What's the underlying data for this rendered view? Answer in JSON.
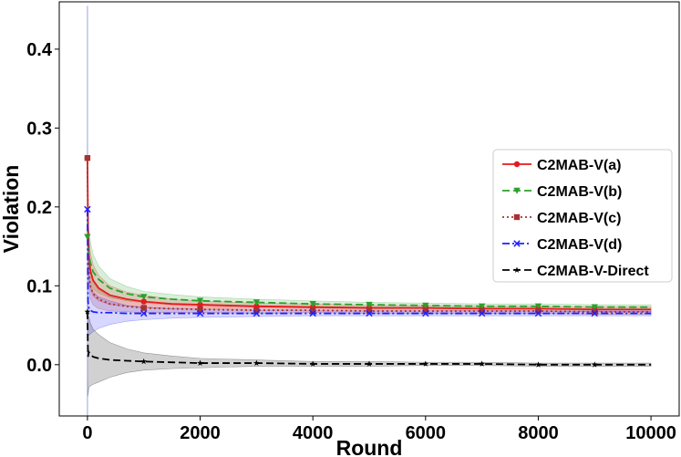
{
  "chart_data": {
    "type": "line",
    "title": "",
    "xlabel": "Round",
    "ylabel": "Violation",
    "xlim": [
      -500,
      10500
    ],
    "ylim": [
      -0.065,
      0.46
    ],
    "xticks": [
      0,
      2000,
      4000,
      6000,
      8000,
      10000
    ],
    "yticks": [
      0.0,
      0.1,
      0.2,
      0.3,
      0.4
    ],
    "xtick_labels": [
      "0",
      "2000",
      "4000",
      "6000",
      "8000",
      "10000"
    ],
    "ytick_labels": [
      "0.0",
      "0.1",
      "0.2",
      "0.3",
      "0.4"
    ],
    "grid": false,
    "legend": "center-right",
    "series": [
      {
        "name": "C2MAB-V(a)",
        "color": "#e41a1c",
        "dash": "solid",
        "marker": "circle",
        "x": [
          0,
          10,
          25,
          50,
          100,
          200,
          400,
          700,
          1000,
          1500,
          2000,
          3000,
          4000,
          5000,
          6000,
          7000,
          8000,
          9000,
          10000
        ],
        "y": [
          0.262,
          0.178,
          0.14,
          0.12,
          0.107,
          0.097,
          0.088,
          0.083,
          0.08,
          0.077,
          0.076,
          0.074,
          0.073,
          0.072,
          0.072,
          0.071,
          0.071,
          0.07,
          0.07
        ],
        "band": [
          0.017,
          0.025,
          0.025,
          0.023,
          0.02,
          0.016,
          0.012,
          0.009,
          0.008,
          0.006,
          0.005,
          0.004,
          0.004,
          0.003,
          0.003,
          0.003,
          0.003,
          0.003,
          0.003
        ],
        "marker_x": [
          0,
          1000,
          2000,
          3000,
          4000,
          5000,
          6000,
          7000,
          8000,
          9000
        ]
      },
      {
        "name": "C2MAB-V(b)",
        "color": "#2ca02c",
        "dash": "dashed",
        "marker": "triangle-down",
        "x": [
          0,
          10,
          25,
          50,
          100,
          200,
          400,
          700,
          1000,
          1500,
          2000,
          3000,
          4000,
          5000,
          6000,
          7000,
          8000,
          9000,
          10000
        ],
        "y": [
          0.162,
          0.155,
          0.14,
          0.13,
          0.118,
          0.108,
          0.097,
          0.09,
          0.086,
          0.083,
          0.081,
          0.079,
          0.077,
          0.076,
          0.075,
          0.074,
          0.074,
          0.073,
          0.073
        ],
        "band": [
          0.03,
          0.03,
          0.03,
          0.027,
          0.022,
          0.017,
          0.012,
          0.009,
          0.007,
          0.006,
          0.005,
          0.004,
          0.004,
          0.003,
          0.003,
          0.003,
          0.003,
          0.003,
          0.003
        ],
        "marker_x": [
          0,
          1000,
          2000,
          3000,
          4000,
          5000,
          6000,
          7000,
          8000,
          9000
        ]
      },
      {
        "name": "C2MAB-V(c)",
        "color": "#a83232",
        "dash": "dotted",
        "marker": "square",
        "x": [
          0,
          10,
          25,
          50,
          100,
          200,
          400,
          700,
          1000,
          1500,
          2000,
          3000,
          4000,
          5000,
          6000,
          7000,
          8000,
          9000,
          10000
        ],
        "y": [
          0.262,
          0.17,
          0.12,
          0.1,
          0.09,
          0.083,
          0.077,
          0.074,
          0.072,
          0.071,
          0.07,
          0.069,
          0.069,
          0.068,
          0.068,
          0.068,
          0.068,
          0.067,
          0.067
        ],
        "band": [
          0.015,
          0.02,
          0.018,
          0.016,
          0.014,
          0.012,
          0.009,
          0.007,
          0.006,
          0.005,
          0.004,
          0.004,
          0.003,
          0.003,
          0.003,
          0.003,
          0.003,
          0.003,
          0.003
        ],
        "marker_x": [
          0,
          1000,
          2000,
          3000,
          4000,
          5000,
          6000,
          7000,
          8000,
          9000
        ]
      },
      {
        "name": "C2MAB-V(d)",
        "color": "#1f1fff",
        "dash": "dashdot",
        "marker": "x",
        "x": [
          0,
          10,
          25,
          50,
          100,
          200,
          400,
          700,
          1000,
          1500,
          2000,
          3000,
          4000,
          5000,
          6000,
          7000,
          8000,
          9000,
          10000
        ],
        "y": [
          0.197,
          0.08,
          0.072,
          0.069,
          0.067,
          0.066,
          0.066,
          0.065,
          0.065,
          0.065,
          0.065,
          0.065,
          0.065,
          0.065,
          0.065,
          0.065,
          0.065,
          0.065,
          0.065
        ],
        "band": [
          0.04,
          0.04,
          0.035,
          0.03,
          0.025,
          0.02,
          0.015,
          0.01,
          0.008,
          0.006,
          0.005,
          0.004,
          0.003,
          0.003,
          0.003,
          0.003,
          0.003,
          0.003,
          0.003
        ],
        "marker_x": [
          0,
          1000,
          2000,
          3000,
          4000,
          5000,
          6000,
          7000,
          8000,
          9000
        ]
      },
      {
        "name": "C2MAB-V-Direct",
        "color": "#000000",
        "dash": "dashed",
        "marker": "star",
        "x": [
          0,
          10,
          25,
          50,
          100,
          200,
          400,
          700,
          1000,
          1500,
          2000,
          3000,
          4000,
          5000,
          6000,
          7000,
          8000,
          9000,
          10000
        ],
        "y": [
          0.067,
          0.01,
          0.016,
          0.013,
          0.01,
          0.008,
          0.006,
          0.005,
          0.004,
          0.003,
          0.002,
          0.002,
          0.001,
          0.001,
          0.001,
          0.001,
          0.0,
          0.0,
          0.0
        ],
        "band": [
          0.06,
          0.05,
          0.045,
          0.04,
          0.035,
          0.03,
          0.022,
          0.015,
          0.011,
          0.008,
          0.006,
          0.004,
          0.003,
          0.003,
          0.002,
          0.002,
          0.002,
          0.002,
          0.002
        ],
        "marker_x": [
          0,
          1000,
          2000,
          3000,
          4000,
          5000,
          6000,
          7000,
          8000,
          9000
        ]
      }
    ],
    "initial_spike": {
      "x": 0,
      "y_low": -0.065,
      "y_high": 0.455,
      "color": "#9e9ef0"
    }
  }
}
